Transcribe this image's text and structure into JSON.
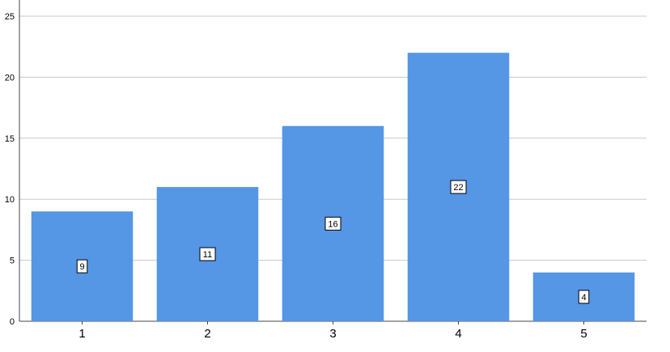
{
  "chart_data": {
    "type": "bar",
    "categories": [
      "1",
      "2",
      "3",
      "4",
      "5"
    ],
    "values": [
      9,
      11,
      16,
      22,
      4
    ],
    "data_labels": [
      "9",
      "11",
      "16",
      "22",
      "4"
    ],
    "yticks": [
      0,
      5,
      10,
      15,
      20,
      25
    ],
    "ylim": [
      0,
      25
    ],
    "grid": true,
    "title": "",
    "xlabel": "",
    "ylabel": "",
    "bar_color": "#5596e5",
    "grid_color": "#c8c8c8",
    "axis_color": "#444444"
  }
}
